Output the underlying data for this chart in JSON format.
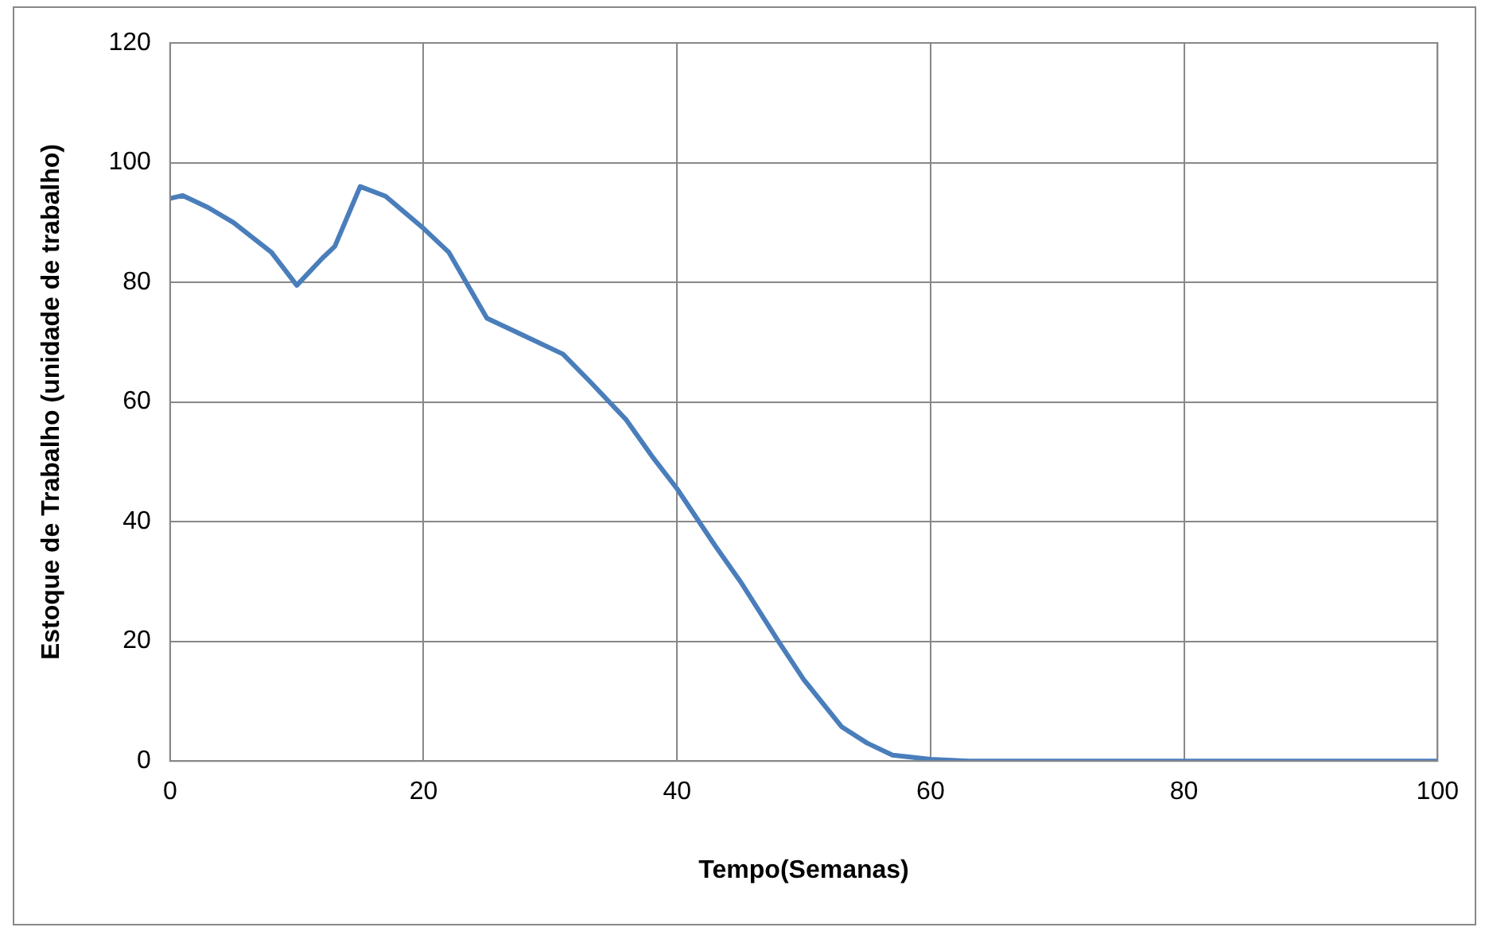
{
  "chart_data": {
    "type": "line",
    "xlabel": "Tempo(Semanas)",
    "ylabel": "Estoque de Trabalho (unidade de trabalho)",
    "x": [
      0,
      1,
      3,
      5,
      8,
      10,
      12,
      13,
      15,
      17,
      20,
      22,
      25,
      28,
      31,
      33,
      36,
      38,
      40,
      43,
      45,
      48,
      50,
      53,
      55,
      57,
      60,
      63,
      70,
      80,
      90,
      100
    ],
    "series": [
      {
        "color": "#4a7ebb",
        "values": [
          94,
          94.5,
          92.5,
          90,
          85,
          79.5,
          84,
          86,
          96,
          94.4,
          89,
          85,
          74,
          71,
          68,
          63.7,
          57,
          51,
          45.5,
          36,
          30,
          20,
          13.6,
          5.7,
          3,
          1,
          0.3,
          0,
          0,
          0,
          0,
          0
        ]
      }
    ],
    "xlim": [
      0,
      100
    ],
    "xticks": [
      0,
      20,
      40,
      60,
      80,
      100
    ],
    "ylim": [
      0,
      120
    ],
    "yticks": [
      0,
      20,
      40,
      60,
      80,
      100,
      120
    ],
    "grid": true,
    "legend": false,
    "marker": "none",
    "line_style": "solid"
  }
}
